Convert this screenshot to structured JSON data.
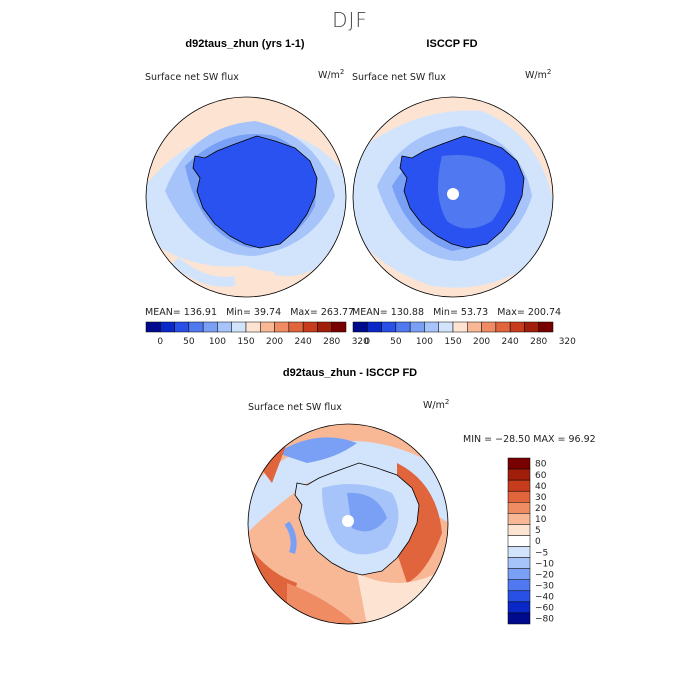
{
  "season": "DJF",
  "panels": [
    {
      "title": "d92taus_zhun (yrs 1-1)",
      "variable": "Surface net SW flux",
      "units": "W/m",
      "units_sup": "2",
      "stats": {
        "mean": "MEAN= 136.91",
        "min": "Min=  39.74",
        "max": "Max= 263.77"
      },
      "colorbar_labels": [
        "0",
        "50",
        "100",
        "150",
        "200",
        "240",
        "280",
        "320"
      ]
    },
    {
      "title": "ISCCP FD",
      "variable": "Surface net SW flux",
      "units": "W/m",
      "units_sup": "2",
      "stats": {
        "mean": "MEAN= 130.88",
        "min": "Min=  53.73",
        "max": "Max= 200.74"
      },
      "colorbar_labels": [
        "0",
        "50",
        "100",
        "150",
        "200",
        "240",
        "280",
        "320"
      ]
    }
  ],
  "diff": {
    "title": "d92taus_zhun - ISCCP FD",
    "variable": "Surface net SW flux",
    "units": "W/m",
    "units_sup": "2",
    "minmax": "MIN = −28.50 MAX =  96.92",
    "colorbar_labels": [
      "80",
      "60",
      "40",
      "30",
      "20",
      "10",
      "5",
      "0",
      "−5",
      "−10",
      "−20",
      "−30",
      "−40",
      "−60",
      "−80"
    ]
  },
  "colors": {
    "flux_scale": [
      "#000a8c",
      "#0a28c8",
      "#2850e6",
      "#5078f0",
      "#7aa0f5",
      "#a6c4fa",
      "#d2e4fc",
      "#fde4d2",
      "#f8b896",
      "#f08c64",
      "#e0643c",
      "#c83c1e",
      "#a01e0a",
      "#780000"
    ],
    "diff_scale": [
      "#780000",
      "#a01e0a",
      "#c83c1e",
      "#e0643c",
      "#f08c64",
      "#f8b896",
      "#fde4d2",
      "#ffffff",
      "#d2e4fc",
      "#a6c4fa",
      "#7aa0f5",
      "#5078f0",
      "#2850e6",
      "#0a28c8",
      "#000a8c"
    ],
    "continent": "#2a52f0",
    "coast": "#000000"
  }
}
